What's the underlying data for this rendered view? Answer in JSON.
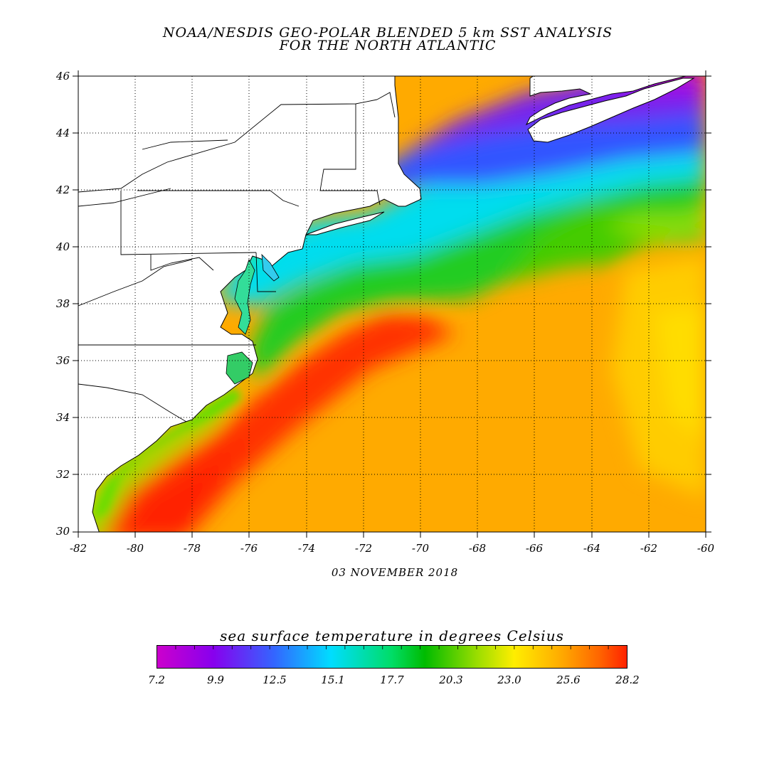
{
  "title_line1": "NOAA/NESDIS GEO-POLAR BLENDED 5 km SST ANALYSIS",
  "title_line2": "FOR THE NORTH ATLANTIC",
  "date": "03 NOVEMBER 2018",
  "colorbar": {
    "title": "sea surface temperature in degrees Celsius",
    "labels": [
      "7.2",
      "9.9",
      "12.5",
      "15.1",
      "17.7",
      "20.3",
      "23.0",
      "25.6",
      "28.2"
    ],
    "min": 7.2,
    "max": 28.2,
    "colors": [
      "#cc00cc",
      "#8800ee",
      "#3366ff",
      "#00ddff",
      "#00dd66",
      "#00bb00",
      "#99dd00",
      "#ffee00",
      "#ffaa00",
      "#ff6600",
      "#ff2200"
    ]
  },
  "axes": {
    "lon_labels": [
      "-82",
      "-80",
      "-78",
      "-76",
      "-74",
      "-72",
      "-70",
      "-68",
      "-66",
      "-64",
      "-62",
      "-60"
    ],
    "lat_labels": [
      "46",
      "44",
      "42",
      "40",
      "38",
      "36",
      "34",
      "32",
      "30"
    ],
    "lon_range": [
      -82,
      -60
    ],
    "lat_range": [
      30,
      46
    ]
  },
  "land_color": "#ffffff",
  "grid": "dotted"
}
